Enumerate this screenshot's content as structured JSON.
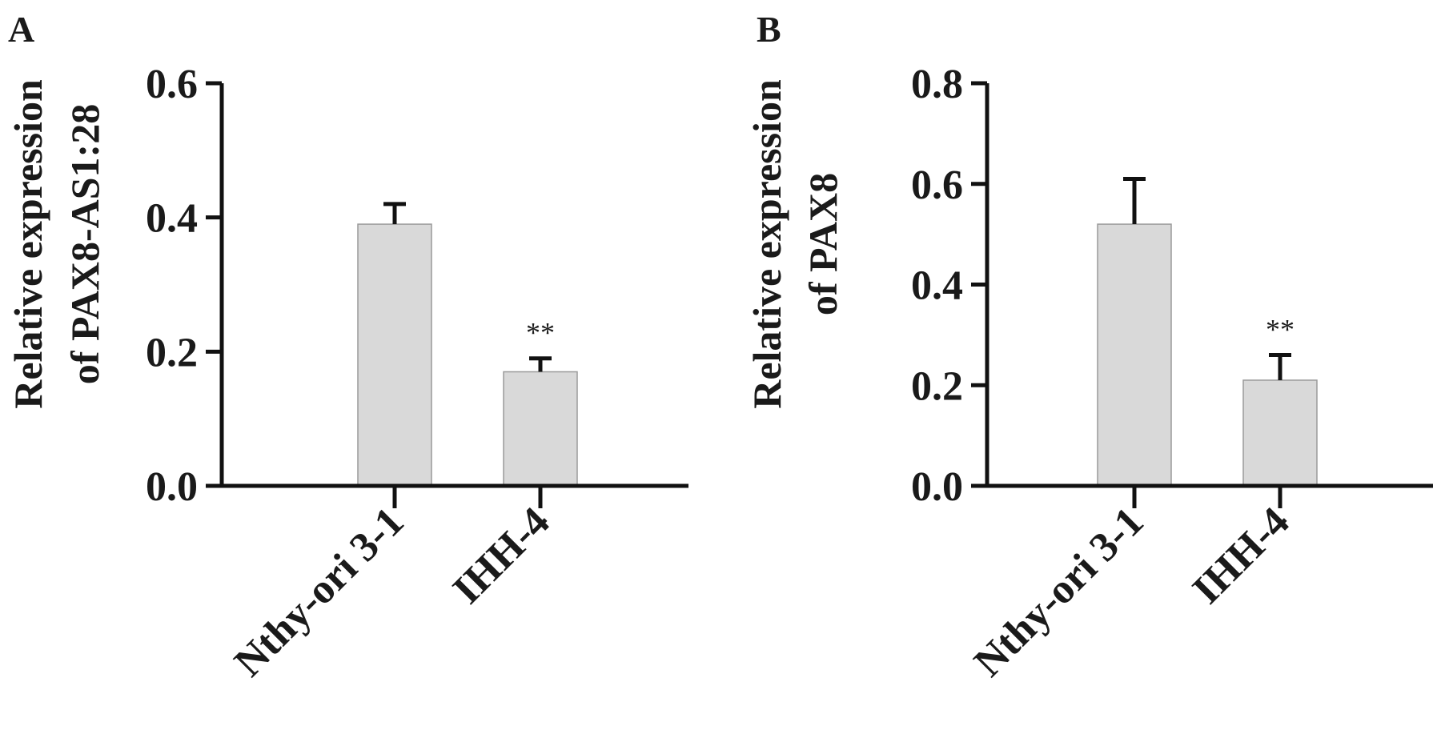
{
  "chart_data": [
    {
      "type": "bar",
      "panel": "A",
      "ylabel_lines": [
        "Relative  expression",
        "of PAX8-AS1:28"
      ],
      "categories": [
        "Nthy-ori 3-1",
        "IHH-4"
      ],
      "values": [
        0.39,
        0.17
      ],
      "errors": [
        0.03,
        0.02
      ],
      "annotations": [
        "",
        "**"
      ],
      "ylim": [
        0,
        0.6
      ],
      "yticks": [
        "0.0",
        "0.2",
        "0.4",
        "0.6"
      ],
      "ytick_values": [
        0.0,
        0.2,
        0.4,
        0.6
      ],
      "grid": false,
      "bar_color": "#d9d9d9"
    },
    {
      "type": "bar",
      "panel": "B",
      "ylabel_lines": [
        "Relative expression",
        "of PAX8"
      ],
      "categories": [
        "Nthy-ori 3-1",
        "IHH-4"
      ],
      "values": [
        0.52,
        0.21
      ],
      "errors": [
        0.09,
        0.05
      ],
      "annotations": [
        "",
        "**"
      ],
      "ylim": [
        0,
        0.8
      ],
      "yticks": [
        "0.0",
        "0.2",
        "0.4",
        "0.6",
        "0.8"
      ],
      "ytick_values": [
        0.0,
        0.2,
        0.4,
        0.6,
        0.8
      ],
      "grid": false,
      "bar_color": "#d9d9d9"
    }
  ]
}
